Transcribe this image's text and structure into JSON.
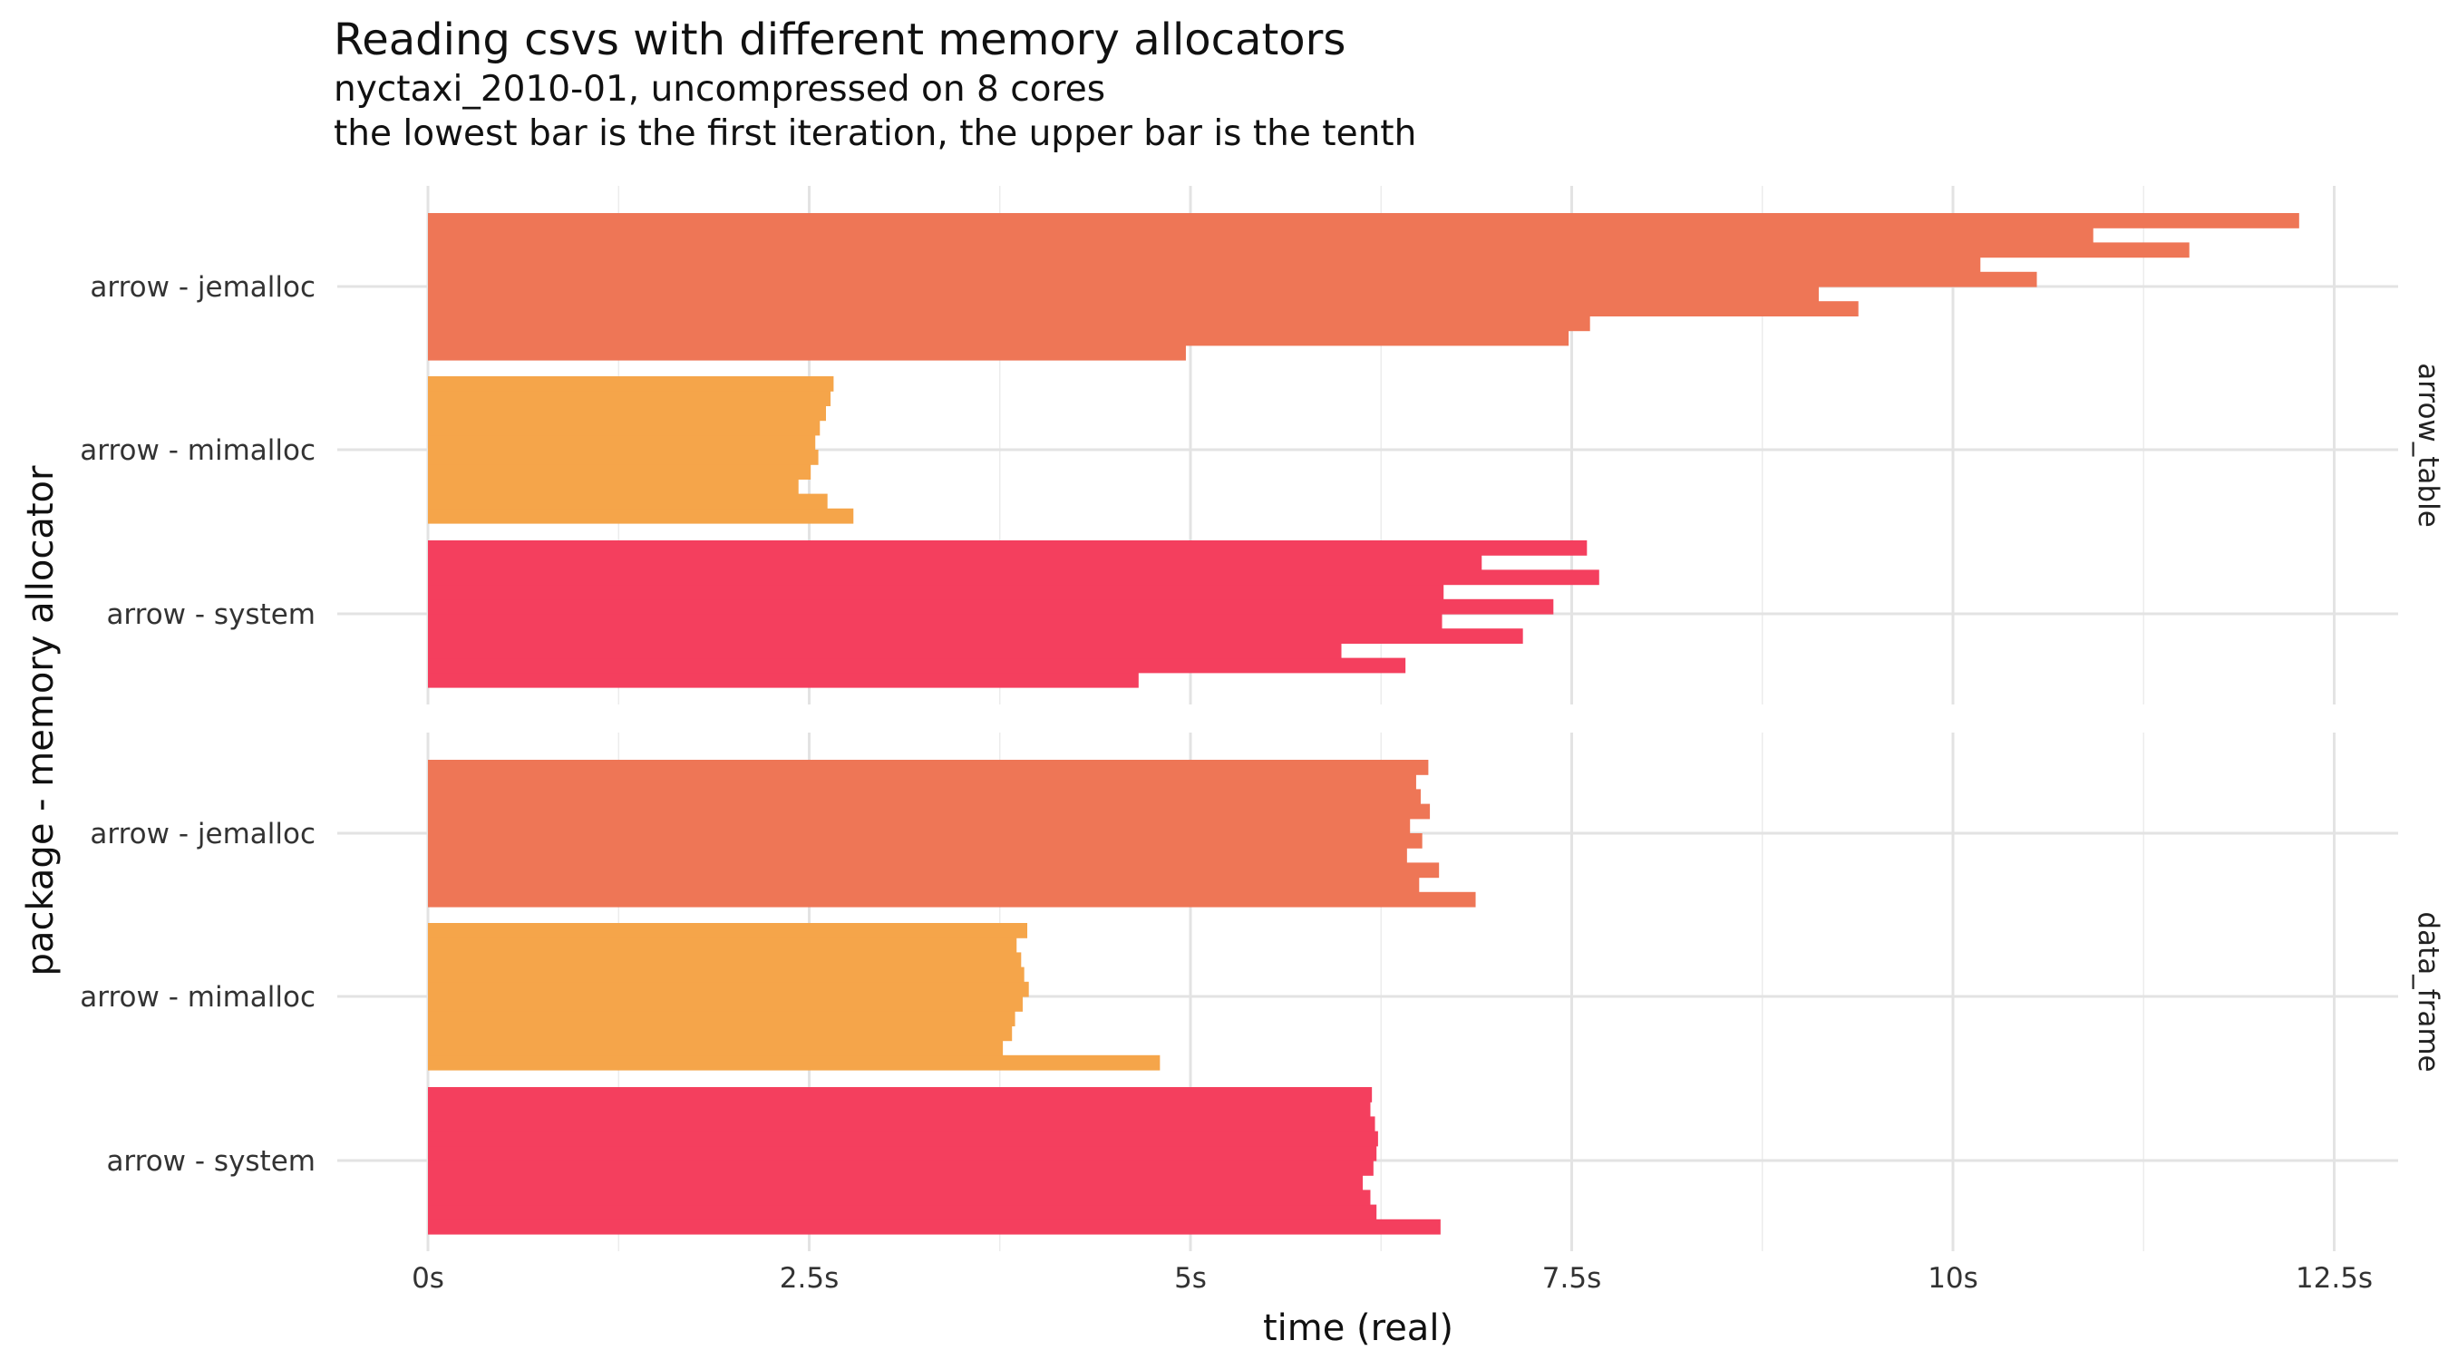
{
  "title": "Reading csvs with different memory allocators",
  "subtitle_line1": "nyctaxi_2010-01, uncompressed on 8 cores",
  "subtitle_line2": "the lowest bar is the first iteration, the upper bar is the tenth",
  "chart_data": {
    "type": "bar",
    "orientation": "horizontal",
    "xlabel": "time (real)",
    "ylabel": "package - memory allocator",
    "xlim": [
      0,
      12.8
    ],
    "x_ticks": [
      0,
      2.5,
      5,
      7.5,
      10,
      12.5
    ],
    "x_tick_labels": [
      "0s",
      "2.5s",
      "5s",
      "7.5s",
      "10s",
      "12.5s"
    ],
    "categories": [
      "arrow - jemalloc",
      "arrow - mimalloc",
      "arrow - system"
    ],
    "category_colors": {
      "arrow - jemalloc": "#EE7656",
      "arrow - mimalloc": "#F5A54A",
      "arrow - system": "#F43F5E"
    },
    "iterations_note": "values listed from iteration 1 (lowest bar) to iteration 10 (upper bar)",
    "panels": [
      {
        "facet": "arrow_table",
        "groups": [
          {
            "category": "arrow - jemalloc",
            "values": [
              4.97,
              7.48,
              7.62,
              9.38,
              9.12,
              10.55,
              10.18,
              11.55,
              10.92,
              12.27
            ]
          },
          {
            "category": "arrow - mimalloc",
            "values": [
              2.79,
              2.62,
              2.43,
              2.51,
              2.56,
              2.54,
              2.57,
              2.61,
              2.64,
              2.66
            ]
          },
          {
            "category": "arrow - system",
            "values": [
              4.66,
              6.41,
              5.99,
              7.18,
              6.65,
              7.38,
              6.66,
              7.68,
              6.91,
              7.6
            ]
          }
        ]
      },
      {
        "facet": "data_frame",
        "groups": [
          {
            "category": "arrow - jemalloc",
            "values": [
              6.87,
              6.5,
              6.63,
              6.42,
              6.52,
              6.44,
              6.57,
              6.51,
              6.48,
              6.56
            ]
          },
          {
            "category": "arrow - mimalloc",
            "values": [
              4.8,
              3.77,
              3.83,
              3.85,
              3.9,
              3.94,
              3.91,
              3.89,
              3.86,
              3.93
            ]
          },
          {
            "category": "arrow - system",
            "values": [
              6.64,
              6.22,
              6.18,
              6.13,
              6.2,
              6.22,
              6.23,
              6.21,
              6.18,
              6.19
            ]
          }
        ]
      }
    ],
    "grid": true,
    "legend": "none"
  }
}
